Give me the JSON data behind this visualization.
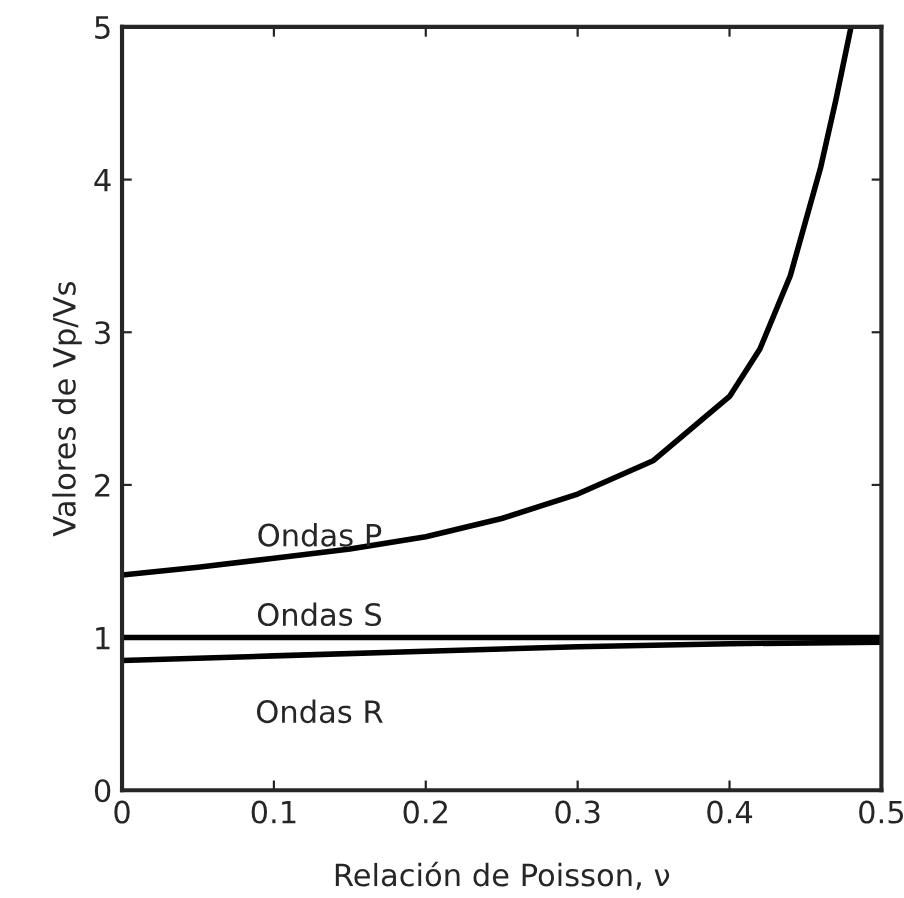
{
  "chart_data": {
    "type": "line",
    "xlabel": "Relación de Poisson, ν",
    "ylabel": "Valores de Vp/Vs",
    "xlim": [
      0,
      0.5
    ],
    "ylim": [
      0,
      5
    ],
    "xticks": [
      0,
      0.1,
      0.2,
      0.3,
      0.4,
      0.5
    ],
    "yticks": [
      0,
      1,
      2,
      3,
      4,
      5
    ],
    "grid": false,
    "legend": false,
    "series": [
      {
        "name": "Ondas P",
        "color": "#000000",
        "x": [
          0,
          0.05,
          0.1,
          0.15,
          0.2,
          0.25,
          0.3,
          0.35,
          0.4,
          0.42,
          0.44,
          0.46,
          0.47,
          0.48
        ],
        "values": [
          1.41,
          1.46,
          1.52,
          1.58,
          1.66,
          1.78,
          1.94,
          2.16,
          2.58,
          2.89,
          3.37,
          4.08,
          4.52,
          5.0
        ]
      },
      {
        "name": "Ondas S",
        "color": "#000000",
        "x": [
          0,
          0.5
        ],
        "values": [
          1.0,
          1.0
        ]
      },
      {
        "name": "Ondas R",
        "color": "#000000",
        "x": [
          0,
          0.1,
          0.2,
          0.3,
          0.35,
          0.4,
          0.5
        ],
        "values": [
          0.85,
          0.88,
          0.91,
          0.94,
          0.95,
          0.96,
          0.97
        ]
      }
    ]
  }
}
